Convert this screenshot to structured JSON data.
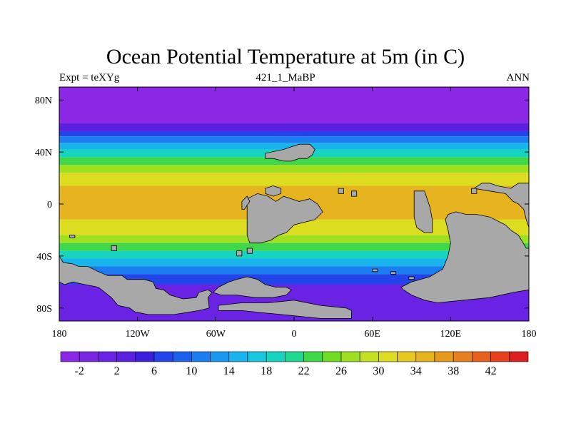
{
  "title": "Ocean Potential Temperature at 5m (in C)",
  "subtitle_left": "Expt = teXYg",
  "subtitle_center": "421_1_MaBP",
  "subtitle_right": "ANN",
  "map": {
    "lon_range": [
      -180,
      180
    ],
    "lat_range": [
      -90,
      90
    ],
    "x_ticks": [
      {
        "value": -180,
        "label": "180"
      },
      {
        "value": -120,
        "label": "120W"
      },
      {
        "value": -60,
        "label": "60W"
      },
      {
        "value": 0,
        "label": "0"
      },
      {
        "value": 60,
        "label": "60E"
      },
      {
        "value": 120,
        "label": "120E"
      },
      {
        "value": 180,
        "label": "180"
      }
    ],
    "y_ticks": [
      {
        "value": 80,
        "label": "80N"
      },
      {
        "value": 40,
        "label": "40N"
      },
      {
        "value": 0,
        "label": "0"
      },
      {
        "value": -40,
        "label": "40S"
      },
      {
        "value": -80,
        "label": "80S"
      }
    ],
    "land_color": "#a8a8a8",
    "bands": [
      {
        "lat_top": 90,
        "lat_bottom": 62,
        "color": "#8a28e6"
      },
      {
        "lat_top": 62,
        "lat_bottom": 56,
        "color": "#5b1fe0"
      },
      {
        "lat_top": 56,
        "lat_bottom": 52,
        "color": "#2244e8"
      },
      {
        "lat_top": 52,
        "lat_bottom": 47,
        "color": "#1c7df0"
      },
      {
        "lat_top": 47,
        "lat_bottom": 42,
        "color": "#19b4ee"
      },
      {
        "lat_top": 42,
        "lat_bottom": 36,
        "color": "#17d4c0"
      },
      {
        "lat_top": 36,
        "lat_bottom": 30,
        "color": "#3fd84a"
      },
      {
        "lat_top": 30,
        "lat_bottom": 24,
        "color": "#9ee020"
      },
      {
        "lat_top": 24,
        "lat_bottom": 14,
        "color": "#dcdc20"
      },
      {
        "lat_top": 14,
        "lat_bottom": -12,
        "color": "#e6b41e"
      },
      {
        "lat_top": -12,
        "lat_bottom": -24,
        "color": "#dcdc20"
      },
      {
        "lat_top": -24,
        "lat_bottom": -30,
        "color": "#9ee020"
      },
      {
        "lat_top": -30,
        "lat_bottom": -36,
        "color": "#3fd84a"
      },
      {
        "lat_top": -36,
        "lat_bottom": -42,
        "color": "#17d4c0"
      },
      {
        "lat_top": -42,
        "lat_bottom": -48,
        "color": "#19b4ee"
      },
      {
        "lat_top": -48,
        "lat_bottom": -54,
        "color": "#1c7df0"
      },
      {
        "lat_top": -54,
        "lat_bottom": -62,
        "color": "#2244e8"
      },
      {
        "lat_top": -62,
        "lat_bottom": -90,
        "color": "#6a22e4"
      }
    ],
    "land": [
      {
        "name": "north-america",
        "points": [
          [
            -180,
            -40
          ],
          [
            -177,
            -45
          ],
          [
            -170,
            -46
          ],
          [
            -165,
            -48
          ],
          [
            -158,
            -48
          ],
          [
            -150,
            -52
          ],
          [
            -143,
            -55
          ],
          [
            -132,
            -55
          ],
          [
            -128,
            -58
          ],
          [
            -115,
            -58
          ],
          [
            -108,
            -60
          ],
          [
            -106,
            -65
          ],
          [
            -100,
            -66
          ],
          [
            -95,
            -70
          ],
          [
            -85,
            -73
          ],
          [
            -75,
            -72
          ],
          [
            -73,
            -68
          ],
          [
            -66,
            -66
          ],
          [
            -63,
            -68
          ],
          [
            -66,
            -72
          ],
          [
            -65,
            -80
          ],
          [
            -73,
            -82
          ],
          [
            -92,
            -85
          ],
          [
            -112,
            -85
          ],
          [
            -122,
            -83
          ],
          [
            -126,
            -80
          ],
          [
            -135,
            -78
          ],
          [
            -140,
            -72
          ],
          [
            -150,
            -64
          ],
          [
            -160,
            -62
          ],
          [
            -170,
            -60
          ],
          [
            -176,
            -62
          ],
          [
            -180,
            -60
          ]
        ]
      },
      {
        "name": "south-america",
        "points": [
          [
            -58,
            -64
          ],
          [
            -50,
            -60
          ],
          [
            -44,
            -58
          ],
          [
            -36,
            -56
          ],
          [
            -28,
            -58
          ],
          [
            -22,
            -62
          ],
          [
            -14,
            -64
          ],
          [
            -6,
            -64
          ],
          [
            -2,
            -66
          ],
          [
            -6,
            -70
          ],
          [
            -16,
            -72
          ],
          [
            -30,
            -72
          ],
          [
            -44,
            -70
          ],
          [
            -56,
            -70
          ],
          [
            -62,
            -68
          ]
        ]
      },
      {
        "name": "antarctic-coast",
        "points": [
          [
            -58,
            -78
          ],
          [
            -40,
            -76
          ],
          [
            -20,
            -76
          ],
          [
            0,
            -74
          ],
          [
            20,
            -78
          ],
          [
            40,
            -80
          ],
          [
            44,
            -82
          ],
          [
            44,
            -88
          ],
          [
            20,
            -88
          ],
          [
            0,
            -86
          ],
          [
            -20,
            -84
          ],
          [
            -40,
            -82
          ],
          [
            -58,
            -82
          ]
        ]
      },
      {
        "name": "africa-eurasia-north",
        "points": [
          [
            -22,
            39
          ],
          [
            -8,
            42
          ],
          [
            -2,
            44
          ],
          [
            4,
            46
          ],
          [
            12,
            46
          ],
          [
            16,
            42
          ],
          [
            14,
            38
          ],
          [
            10,
            35
          ],
          [
            4,
            35
          ],
          [
            -2,
            33
          ],
          [
            -8,
            33
          ],
          [
            -16,
            35
          ],
          [
            -22,
            35
          ]
        ]
      },
      {
        "name": "africa-main",
        "points": [
          [
            -36,
            4
          ],
          [
            -28,
            8
          ],
          [
            -20,
            6
          ],
          [
            -14,
            2
          ],
          [
            -8,
            6
          ],
          [
            -2,
            4
          ],
          [
            4,
            2
          ],
          [
            12,
            4
          ],
          [
            18,
            0
          ],
          [
            22,
            -6
          ],
          [
            16,
            -12
          ],
          [
            8,
            -14
          ],
          [
            0,
            -16
          ],
          [
            -6,
            -22
          ],
          [
            -12,
            -24
          ],
          [
            -18,
            -28
          ],
          [
            -26,
            -30
          ],
          [
            -34,
            -30
          ],
          [
            -36,
            -24
          ],
          [
            -36,
            -12
          ]
        ]
      },
      {
        "name": "africa-horn",
        "points": [
          [
            -40,
            2
          ],
          [
            -36,
            6
          ],
          [
            -34,
            2
          ],
          [
            -38,
            -4
          ],
          [
            -40,
            -4
          ]
        ]
      },
      {
        "name": "west-africa-bulge",
        "points": [
          [
            -22,
            12
          ],
          [
            -16,
            14
          ],
          [
            -10,
            12
          ],
          [
            -10,
            8
          ],
          [
            -16,
            6
          ],
          [
            -22,
            8
          ]
        ]
      },
      {
        "name": "india",
        "points": [
          [
            92,
            10
          ],
          [
            100,
            10
          ],
          [
            102,
            4
          ],
          [
            104,
            -2
          ],
          [
            106,
            -12
          ],
          [
            106,
            -22
          ],
          [
            100,
            -22
          ],
          [
            94,
            -18
          ],
          [
            92,
            -10
          ]
        ]
      },
      {
        "name": "australia-ridge",
        "points": [
          [
            118,
            -8
          ],
          [
            124,
            -6
          ],
          [
            132,
            -8
          ],
          [
            140,
            -8
          ],
          [
            150,
            -10
          ],
          [
            158,
            -14
          ],
          [
            162,
            -16
          ],
          [
            166,
            -20
          ],
          [
            172,
            -24
          ],
          [
            178,
            -34
          ],
          [
            180,
            -34
          ],
          [
            180,
            -66
          ],
          [
            168,
            -68
          ],
          [
            150,
            -72
          ],
          [
            130,
            -74
          ],
          [
            110,
            -76
          ],
          [
            100,
            -74
          ],
          [
            90,
            -70
          ],
          [
            84,
            -66
          ],
          [
            82,
            -64
          ],
          [
            90,
            -60
          ],
          [
            104,
            -56
          ],
          [
            114,
            -50
          ],
          [
            118,
            -40
          ],
          [
            120,
            -30
          ],
          [
            118,
            -20
          ],
          [
            116,
            -12
          ]
        ]
      },
      {
        "name": "east-asia-coast",
        "points": [
          [
            138,
            12
          ],
          [
            150,
            10
          ],
          [
            162,
            8
          ],
          [
            168,
            2
          ],
          [
            172,
            0
          ],
          [
            176,
            -4
          ],
          [
            178,
            -12
          ],
          [
            180,
            -18
          ],
          [
            180,
            16
          ],
          [
            172,
            16
          ],
          [
            166,
            12
          ],
          [
            156,
            14
          ],
          [
            150,
            16
          ],
          [
            144,
            16
          ]
        ]
      },
      {
        "name": "islands-small",
        "points": [
          [
            44,
            10
          ],
          [
            48,
            10
          ],
          [
            48,
            6
          ],
          [
            44,
            6
          ]
        ]
      },
      {
        "name": "island-2",
        "points": [
          [
            34,
            12
          ],
          [
            38,
            12
          ],
          [
            38,
            8
          ],
          [
            34,
            8
          ]
        ]
      },
      {
        "name": "island-3",
        "points": [
          [
            136,
            12
          ],
          [
            140,
            12
          ],
          [
            140,
            8
          ],
          [
            136,
            8
          ]
        ]
      },
      {
        "name": "island-4",
        "points": [
          [
            -172,
            -24
          ],
          [
            -168,
            -24
          ],
          [
            -168,
            -26
          ],
          [
            -172,
            -26
          ]
        ]
      },
      {
        "name": "island-5",
        "points": [
          [
            -140,
            -32
          ],
          [
            -136,
            -32
          ],
          [
            -136,
            -36
          ],
          [
            -140,
            -36
          ]
        ]
      },
      {
        "name": "island-6",
        "points": [
          [
            -44,
            -36
          ],
          [
            -40,
            -36
          ],
          [
            -40,
            -40
          ],
          [
            -44,
            -40
          ]
        ]
      },
      {
        "name": "island-7",
        "points": [
          [
            -36,
            -34
          ],
          [
            -32,
            -34
          ],
          [
            -32,
            -38
          ],
          [
            -36,
            -38
          ]
        ]
      },
      {
        "name": "island-8",
        "points": [
          [
            60,
            -50
          ],
          [
            64,
            -50
          ],
          [
            64,
            -52
          ],
          [
            60,
            -52
          ]
        ]
      },
      {
        "name": "island-9",
        "points": [
          [
            74,
            -52
          ],
          [
            78,
            -52
          ],
          [
            78,
            -54
          ],
          [
            74,
            -54
          ]
        ]
      },
      {
        "name": "island-10",
        "points": [
          [
            88,
            -56
          ],
          [
            92,
            -56
          ],
          [
            92,
            -58
          ],
          [
            88,
            -58
          ]
        ]
      }
    ]
  },
  "colorbar": {
    "colors": [
      "#8a28e6",
      "#7a24e4",
      "#6a22e4",
      "#5b1fe0",
      "#3a20dc",
      "#2244e8",
      "#1c60ee",
      "#1c7df0",
      "#1a98f0",
      "#19b4ee",
      "#18c8e0",
      "#17d4c0",
      "#20d890",
      "#3fd84a",
      "#70dc24",
      "#9ee020",
      "#c4e020",
      "#dcdc20",
      "#e6c81e",
      "#e6b41e",
      "#e69a1e",
      "#e6801e",
      "#e6601e",
      "#e6401e",
      "#dc2020"
    ],
    "labels": [
      "-2",
      "2",
      "6",
      "10",
      "14",
      "18",
      "22",
      "26",
      "30",
      "34",
      "38",
      "42"
    ]
  }
}
